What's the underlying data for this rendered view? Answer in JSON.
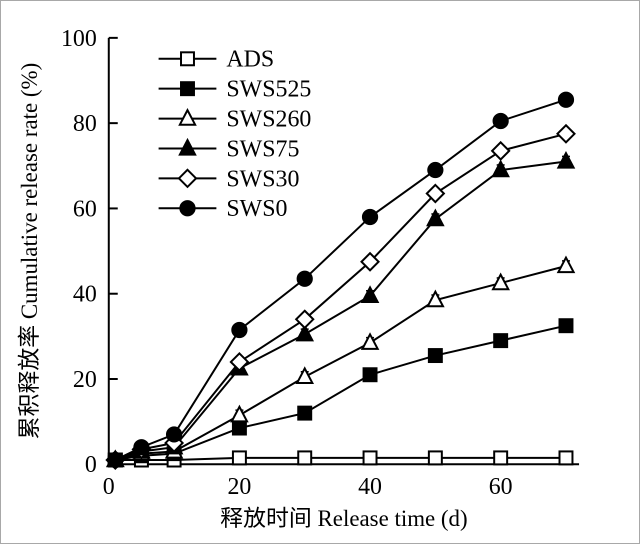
{
  "chart_data": {
    "type": "line",
    "title": "",
    "xlabel": "释放时间 Release time (d)",
    "ylabel": "累积释放率 Cumulative release rate (%)",
    "xlim": [
      0,
      72
    ],
    "ylim": [
      0,
      100
    ],
    "x_ticks": [
      0,
      20,
      40,
      60
    ],
    "y_ticks": [
      0,
      20,
      40,
      60,
      80,
      100
    ],
    "grid": false,
    "frame": "left-bottom",
    "legend_position": "top-left-inside",
    "line_color": "#000000",
    "background": "#ffffff",
    "x": [
      1,
      5,
      10,
      20,
      30,
      40,
      50,
      60,
      70
    ],
    "series": [
      {
        "name": "ADS",
        "marker": "square-open",
        "error": 0.4,
        "values": [
          1,
          1,
          1,
          1.5,
          1.5,
          1.5,
          1.5,
          1.5,
          1.5
        ]
      },
      {
        "name": "SWS525",
        "marker": "square-filled",
        "error": 1.0,
        "values": [
          1,
          2,
          2.5,
          8.5,
          12,
          21,
          25.5,
          29,
          32.5
        ]
      },
      {
        "name": "SWS260",
        "marker": "triangle-open",
        "error": 1.2,
        "values": [
          1,
          2.5,
          3,
          11.5,
          20.5,
          28.5,
          38.5,
          42.5,
          46.5
        ]
      },
      {
        "name": "SWS75",
        "marker": "triangle-filled",
        "error": 1.2,
        "values": [
          1,
          3,
          4,
          22.5,
          30.5,
          39.5,
          57.5,
          69,
          71
        ]
      },
      {
        "name": "SWS30",
        "marker": "diamond-open",
        "error": 1.2,
        "values": [
          1,
          3.5,
          5,
          24,
          34,
          47.5,
          63.5,
          73.5,
          77.5
        ]
      },
      {
        "name": "SWS0",
        "marker": "circle-filled",
        "error": 1.2,
        "values": [
          1,
          4,
          7,
          31.5,
          43.5,
          58,
          69,
          80.5,
          85.5
        ]
      }
    ]
  }
}
